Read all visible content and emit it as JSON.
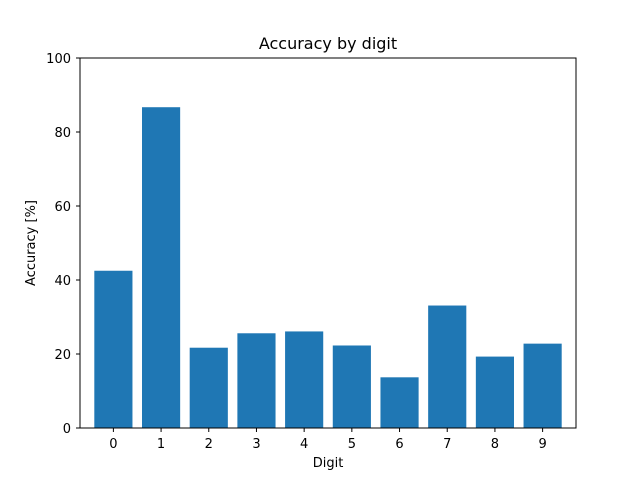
{
  "chart_data": {
    "type": "bar",
    "title": "Accuracy by digit",
    "xlabel": "Digit",
    "ylabel": "Accuracy [%]",
    "categories": [
      "0",
      "1",
      "2",
      "3",
      "4",
      "5",
      "6",
      "7",
      "8",
      "9"
    ],
    "values": [
      42.5,
      86.7,
      21.7,
      25.6,
      26.1,
      22.3,
      13.7,
      33.1,
      19.3,
      22.8
    ],
    "ylim": [
      0,
      100
    ],
    "yticks": [
      "0",
      "20",
      "40",
      "60",
      "80",
      "100"
    ],
    "grid": false,
    "bar_color": "#1f77b4"
  }
}
